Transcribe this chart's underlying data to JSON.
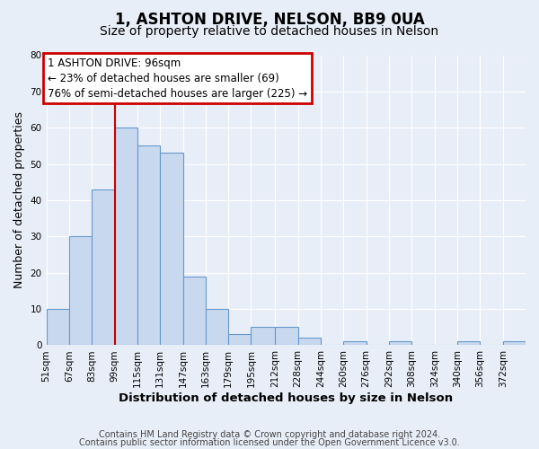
{
  "title": "1, ASHTON DRIVE, NELSON, BB9 0UA",
  "subtitle": "Size of property relative to detached houses in Nelson",
  "xlabel": "Distribution of detached houses by size in Nelson",
  "ylabel": "Number of detached properties",
  "bar_color": "#c8d8ee",
  "bar_edge_color": "#6699cc",
  "background_color": "#e8eef8",
  "grid_color": "#ffffff",
  "annotation_box_color": "#cc0000",
  "vline_color": "#cc0000",
  "vline_x": 99,
  "bin_edges": [
    51,
    67,
    83,
    99,
    115,
    131,
    147,
    163,
    179,
    195,
    212,
    228,
    244,
    260,
    276,
    292,
    308,
    324,
    340,
    356,
    372,
    388
  ],
  "counts": [
    10,
    30,
    43,
    60,
    55,
    53,
    19,
    10,
    3,
    5,
    5,
    2,
    0,
    1,
    0,
    1,
    0,
    0,
    1,
    0,
    1
  ],
  "tick_labels": [
    "51sqm",
    "67sqm",
    "83sqm",
    "99sqm",
    "115sqm",
    "131sqm",
    "147sqm",
    "163sqm",
    "179sqm",
    "195sqm",
    "212sqm",
    "228sqm",
    "244sqm",
    "260sqm",
    "276sqm",
    "292sqm",
    "308sqm",
    "324sqm",
    "340sqm",
    "356sqm",
    "372sqm"
  ],
  "ylim": [
    0,
    80
  ],
  "yticks": [
    0,
    10,
    20,
    30,
    40,
    50,
    60,
    70,
    80
  ],
  "annotation_title": "1 ASHTON DRIVE: 96sqm",
  "annotation_line1": "← 23% of detached houses are smaller (69)",
  "annotation_line2": "76% of semi-detached houses are larger (225) →",
  "footer_line1": "Contains HM Land Registry data © Crown copyright and database right 2024.",
  "footer_line2": "Contains public sector information licensed under the Open Government Licence v3.0.",
  "title_fontsize": 12,
  "subtitle_fontsize": 10,
  "xlabel_fontsize": 9.5,
  "ylabel_fontsize": 9,
  "tick_fontsize": 7.5,
  "annotation_fontsize": 8.5,
  "footer_fontsize": 7
}
